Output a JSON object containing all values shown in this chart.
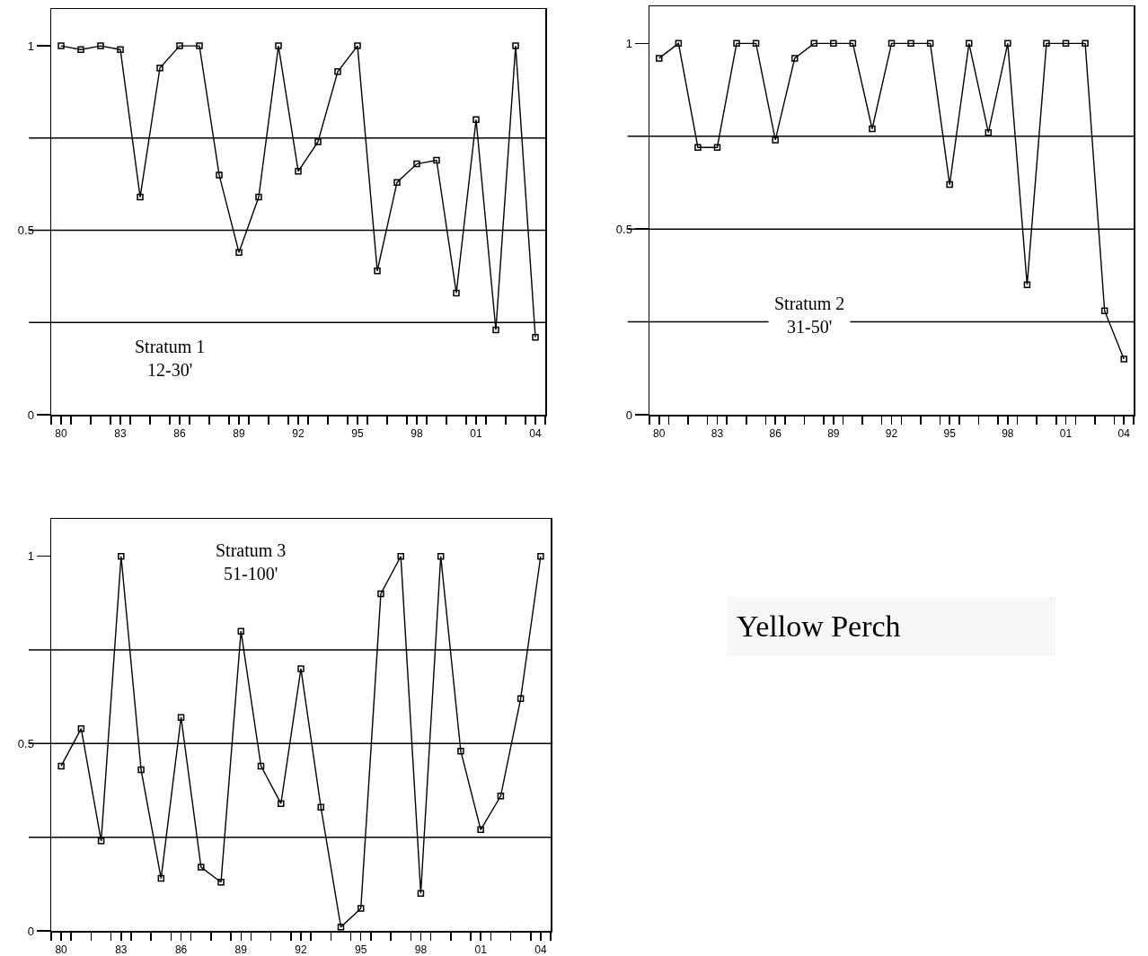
{
  "chart_data": [
    {
      "type": "line",
      "annotations": [
        "Stratum 1",
        "12-30'"
      ],
      "x": [
        1980,
        1981,
        1982,
        1983,
        1984,
        1985,
        1986,
        1987,
        1988,
        1989,
        1990,
        1991,
        1992,
        1993,
        1994,
        1995,
        1996,
        1997,
        1998,
        1999,
        2000,
        2001,
        2002,
        2003,
        2004
      ],
      "series": [
        {
          "color": "#000000",
          "values": [
            1,
            0.99,
            1,
            0.99,
            0.59,
            0.94,
            1,
            1,
            0.65,
            0.44,
            0.59,
            1,
            0.66,
            0.74,
            0.93,
            1,
            0.39,
            0.63,
            0.68,
            0.69,
            0.33,
            0.8,
            0.23,
            1,
            0.21
          ]
        }
      ],
      "xlim": [
        1979.5,
        2004.5
      ],
      "ylim": [
        0,
        1.1
      ],
      "yticks": [
        0,
        0.5,
        1
      ],
      "xticks": [
        {
          "value": 1979.5,
          "label": null
        },
        {
          "value": 1980.5,
          "label": null
        },
        {
          "value": 1981.5,
          "label": null
        },
        {
          "value": 1982.5,
          "label": null
        },
        {
          "value": 1983.5,
          "label": null
        },
        {
          "value": 1984.5,
          "label": null
        },
        {
          "value": 1985.5,
          "label": null
        },
        {
          "value": 1986.5,
          "label": null
        },
        {
          "value": 1987.5,
          "label": null
        },
        {
          "value": 1988.5,
          "label": null
        },
        {
          "value": 1989.5,
          "label": null
        },
        {
          "value": 1990.5,
          "label": null
        },
        {
          "value": 1991.5,
          "label": null
        },
        {
          "value": 1992.5,
          "label": null
        },
        {
          "value": 1993.5,
          "label": null
        },
        {
          "value": 1994.5,
          "label": null
        },
        {
          "value": 1995.5,
          "label": null
        },
        {
          "value": 1996.5,
          "label": null
        },
        {
          "value": 1997.5,
          "label": null
        },
        {
          "value": 1998.5,
          "label": null
        },
        {
          "value": 1999.5,
          "label": null
        },
        {
          "value": 2000.5,
          "label": null
        },
        {
          "value": 2001.5,
          "label": null
        },
        {
          "value": 2002.5,
          "label": null
        },
        {
          "value": 2003.5,
          "label": null
        },
        {
          "value": 2004.5,
          "label": null
        },
        {
          "value": 1980,
          "label": "80"
        },
        {
          "value": 1983,
          "label": "83"
        },
        {
          "value": 1986,
          "label": "86"
        },
        {
          "value": 1989,
          "label": "89"
        },
        {
          "value": 1992,
          "label": "92"
        },
        {
          "value": 1995,
          "label": "95"
        },
        {
          "value": 1998,
          "label": "98"
        },
        {
          "value": 2001,
          "label": "01"
        },
        {
          "value": 2004,
          "label": "04"
        }
      ],
      "ref_lines": [
        {
          "axis": "y",
          "value": 0.25,
          "color": "#000000"
        },
        {
          "axis": "y",
          "value": 0.5,
          "color": "#000000"
        },
        {
          "axis": "y",
          "value": 0.75,
          "color": "#000000"
        }
      ],
      "marker": "square",
      "line_style": "solid"
    },
    {
      "type": "line",
      "annotations": [
        "Stratum 2",
        "31-50'"
      ],
      "x": [
        1980,
        1981,
        1982,
        1983,
        1984,
        1985,
        1986,
        1987,
        1988,
        1989,
        1990,
        1991,
        1992,
        1993,
        1994,
        1995,
        1996,
        1997,
        1998,
        1999,
        2000,
        2001,
        2002,
        2003,
        2004
      ],
      "series": [
        {
          "color": "#000000",
          "values": [
            0.96,
            1,
            0.72,
            0.72,
            1,
            1,
            0.74,
            0.96,
            1,
            1,
            1,
            0.77,
            1,
            1,
            1,
            0.62,
            1,
            0.76,
            1,
            0.35,
            1,
            1,
            1,
            0.28,
            0.15
          ]
        }
      ],
      "xlim": [
        1979.5,
        2004.5
      ],
      "ylim": [
        0,
        1.1
      ],
      "yticks": [
        0,
        0.5,
        1
      ],
      "xticks": [
        {
          "value": 1979.5,
          "label": null
        },
        {
          "value": 1980.5,
          "label": null
        },
        {
          "value": 1981.5,
          "label": null
        },
        {
          "value": 1982.5,
          "label": null
        },
        {
          "value": 1983.5,
          "label": null
        },
        {
          "value": 1984.5,
          "label": null
        },
        {
          "value": 1985.5,
          "label": null
        },
        {
          "value": 1986.5,
          "label": null
        },
        {
          "value": 1987.5,
          "label": null
        },
        {
          "value": 1988.5,
          "label": null
        },
        {
          "value": 1989.5,
          "label": null
        },
        {
          "value": 1990.5,
          "label": null
        },
        {
          "value": 1991.5,
          "label": null
        },
        {
          "value": 1992.5,
          "label": null
        },
        {
          "value": 1993.5,
          "label": null
        },
        {
          "value": 1994.5,
          "label": null
        },
        {
          "value": 1995.5,
          "label": null
        },
        {
          "value": 1996.5,
          "label": null
        },
        {
          "value": 1997.5,
          "label": null
        },
        {
          "value": 1998.5,
          "label": null
        },
        {
          "value": 1999.5,
          "label": null
        },
        {
          "value": 2000.5,
          "label": null
        },
        {
          "value": 2001.5,
          "label": null
        },
        {
          "value": 2002.5,
          "label": null
        },
        {
          "value": 2003.5,
          "label": null
        },
        {
          "value": 2004.5,
          "label": null
        },
        {
          "value": 1980,
          "label": "80"
        },
        {
          "value": 1983,
          "label": "83"
        },
        {
          "value": 1986,
          "label": "86"
        },
        {
          "value": 1989,
          "label": "89"
        },
        {
          "value": 1992,
          "label": "92"
        },
        {
          "value": 1995,
          "label": "95"
        },
        {
          "value": 1998,
          "label": "98"
        },
        {
          "value": 2001,
          "label": "01"
        },
        {
          "value": 2004,
          "label": "04"
        }
      ],
      "ref_lines": [
        {
          "axis": "y",
          "value": 0.25,
          "color": "#000000"
        },
        {
          "axis": "y",
          "value": 0.5,
          "color": "#000000"
        },
        {
          "axis": "y",
          "value": 0.75,
          "color": "#000000"
        }
      ],
      "marker": "square",
      "line_style": "solid"
    },
    {
      "type": "line",
      "annotations": [
        "Stratum 3",
        "51-100'"
      ],
      "x": [
        1980,
        1981,
        1982,
        1983,
        1984,
        1985,
        1986,
        1987,
        1988,
        1989,
        1990,
        1991,
        1992,
        1993,
        1994,
        1995,
        1996,
        1997,
        1998,
        1999,
        2000,
        2001,
        2002,
        2003,
        2004
      ],
      "series": [
        {
          "color": "#000000",
          "values": [
            0.44,
            0.54,
            0.24,
            1,
            0.43,
            0.14,
            0.57,
            0.17,
            0.13,
            0.8,
            0.44,
            0.34,
            0.7,
            0.33,
            0.01,
            0.06,
            0.9,
            1,
            0.1,
            1,
            0.48,
            0.27,
            0.36,
            0.62,
            1
          ]
        }
      ],
      "xlim": [
        1979.5,
        2004.5
      ],
      "ylim": [
        0,
        1.1
      ],
      "yticks": [
        0,
        0.5,
        1
      ],
      "xticks": [
        {
          "value": 1979.5,
          "label": null
        },
        {
          "value": 1980.5,
          "label": null
        },
        {
          "value": 1981.5,
          "label": null
        },
        {
          "value": 1982.5,
          "label": null
        },
        {
          "value": 1983.5,
          "label": null
        },
        {
          "value": 1984.5,
          "label": null
        },
        {
          "value": 1985.5,
          "label": null
        },
        {
          "value": 1986.5,
          "label": null
        },
        {
          "value": 1987.5,
          "label": null
        },
        {
          "value": 1988.5,
          "label": null
        },
        {
          "value": 1989.5,
          "label": null
        },
        {
          "value": 1990.5,
          "label": null
        },
        {
          "value": 1991.5,
          "label": null
        },
        {
          "value": 1992.5,
          "label": null
        },
        {
          "value": 1993.5,
          "label": null
        },
        {
          "value": 1994.5,
          "label": null
        },
        {
          "value": 1995.5,
          "label": null
        },
        {
          "value": 1996.5,
          "label": null
        },
        {
          "value": 1997.5,
          "label": null
        },
        {
          "value": 1998.5,
          "label": null
        },
        {
          "value": 1999.5,
          "label": null
        },
        {
          "value": 2000.5,
          "label": null
        },
        {
          "value": 2001.5,
          "label": null
        },
        {
          "value": 2002.5,
          "label": null
        },
        {
          "value": 2003.5,
          "label": null
        },
        {
          "value": 2004.5,
          "label": null
        },
        {
          "value": 1980,
          "label": "80"
        },
        {
          "value": 1983,
          "label": "83"
        },
        {
          "value": 1986,
          "label": "86"
        },
        {
          "value": 1989,
          "label": "89"
        },
        {
          "value": 1992,
          "label": "92"
        },
        {
          "value": 1995,
          "label": "95"
        },
        {
          "value": 1998,
          "label": "98"
        },
        {
          "value": 2001,
          "label": "01"
        },
        {
          "value": 2004,
          "label": "04"
        }
      ],
      "ref_lines": [
        {
          "axis": "y",
          "value": 0.25,
          "color": "#000000"
        },
        {
          "axis": "y",
          "value": 0.5,
          "color": "#000000"
        },
        {
          "axis": "y",
          "value": 0.75,
          "color": "#000000"
        }
      ],
      "marker": "square",
      "line_style": "solid"
    },
    {
      "type": "other",
      "title": "Yellow Perch"
    }
  ]
}
